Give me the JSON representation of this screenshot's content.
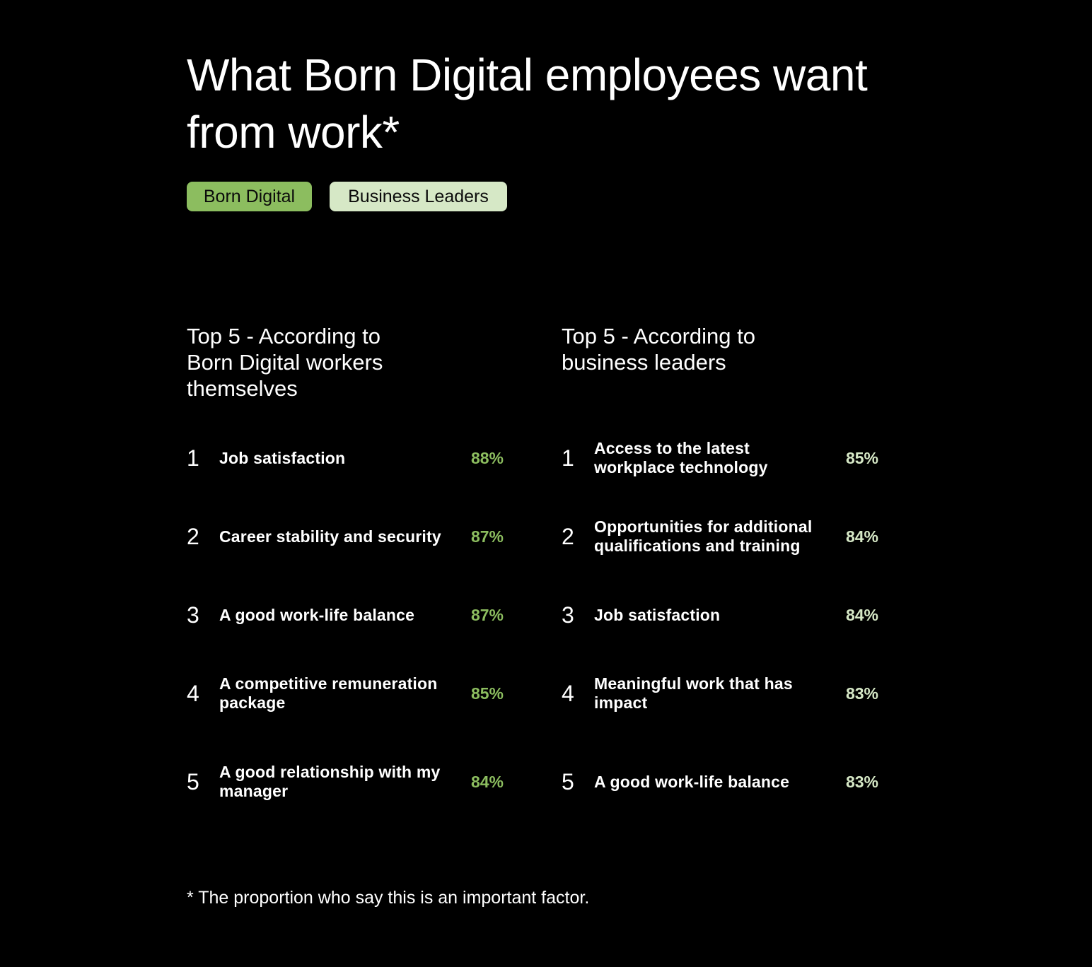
{
  "title": "What Born Digital employees want from work*",
  "legend": [
    {
      "label": "Born Digital",
      "color": "#8cbd5f"
    },
    {
      "label": "Business Leaders",
      "color": "#d6e8c6"
    }
  ],
  "footnote": "* The proportion who say this is an important factor.",
  "chart_data": [
    {
      "type": "table",
      "title": "Top 5 - According to Born Digital workers themselves",
      "series_color": "#8cbd5f",
      "rows": [
        {
          "rank": "1",
          "label": "Job satisfaction",
          "value": 88,
          "value_text": "88%"
        },
        {
          "rank": "2",
          "label": "Career stability and security",
          "value": 87,
          "value_text": "87%"
        },
        {
          "rank": "3",
          "label": "A good work-life balance",
          "value": 87,
          "value_text": "87%"
        },
        {
          "rank": "4",
          "label": "A competitive remuneration package",
          "value": 85,
          "value_text": "85%"
        },
        {
          "rank": "5",
          "label": "A good relationship with my manager",
          "value": 84,
          "value_text": "84%"
        }
      ]
    },
    {
      "type": "table",
      "title": "Top 5 - According to business leaders",
      "series_color": "#d6e8c6",
      "rows": [
        {
          "rank": "1",
          "label": "Access to the latest workplace technology",
          "value": 85,
          "value_text": "85%"
        },
        {
          "rank": "2",
          "label": "Opportunities for additional qualifications and training",
          "value": 84,
          "value_text": "84%"
        },
        {
          "rank": "3",
          "label": "Job satisfaction",
          "value": 84,
          "value_text": "84%"
        },
        {
          "rank": "4",
          "label": "Meaningful work that has impact",
          "value": 83,
          "value_text": "83%"
        },
        {
          "rank": "5",
          "label": "A good work-life balance",
          "value": 83,
          "value_text": "83%"
        }
      ]
    }
  ]
}
